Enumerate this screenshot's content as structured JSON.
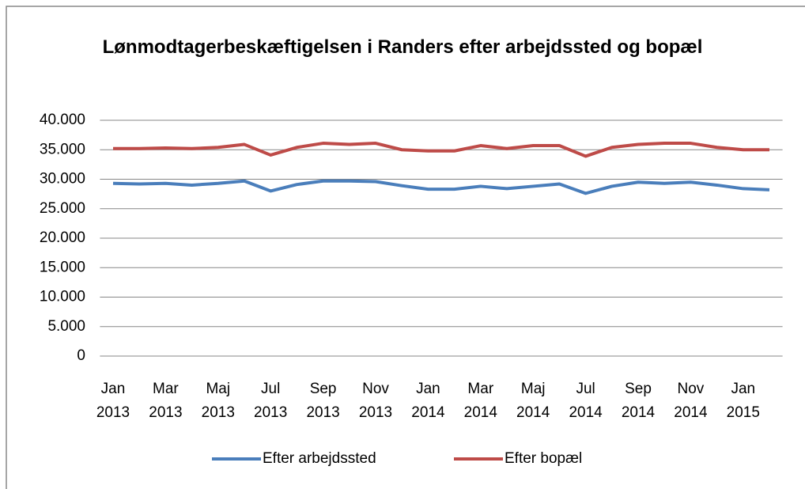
{
  "chart_data": {
    "type": "line",
    "title": "Lønmodtagerbeskæftigelsen i Randers efter arbejdssted og bopæl",
    "categories": [
      "Jan 2013",
      null,
      "Mar 2013",
      null,
      "Maj 2013",
      null,
      "Jul 2013",
      null,
      "Sep 2013",
      null,
      "Nov 2013",
      null,
      "Jan 2014",
      null,
      "Mar 2014",
      null,
      "Maj 2014",
      null,
      "Jul 2014",
      null,
      "Sep 2014",
      null,
      "Nov 2014",
      null,
      "Jan 2015",
      null
    ],
    "series": [
      {
        "name": "Efter arbejdssted",
        "color": "#4a7ebb",
        "values": [
          29300,
          29200,
          29300,
          29000,
          29300,
          29700,
          28000,
          29100,
          29700,
          29700,
          29600,
          28900,
          28300,
          28300,
          28800,
          28400,
          28800,
          29200,
          27600,
          28800,
          29500,
          29300,
          29500,
          29000,
          28400,
          28200
        ]
      },
      {
        "name": "Efter bopæl",
        "color": "#be4b48",
        "values": [
          35200,
          35200,
          35300,
          35200,
          35400,
          35900,
          34100,
          35400,
          36100,
          35900,
          36100,
          35000,
          34800,
          34800,
          35700,
          35200,
          35700,
          35700,
          33900,
          35400,
          35900,
          36100,
          36100,
          35400,
          35000,
          35000
        ]
      }
    ],
    "ylim": [
      0,
      40000
    ],
    "yticks": [
      0,
      {
        "value": 5000,
        "label": "5.000"
      },
      {
        "value": 10000,
        "label": "10.000"
      },
      {
        "value": 15000,
        "label": "15.000"
      },
      {
        "value": 20000,
        "label": "20.000"
      },
      {
        "value": 25000,
        "label": "25.000"
      },
      {
        "value": 30000,
        "label": "30.000"
      },
      {
        "value": 35000,
        "label": "35.000"
      },
      {
        "value": 40000,
        "label": "40.000"
      }
    ],
    "grid": true,
    "legend": "bottom"
  }
}
